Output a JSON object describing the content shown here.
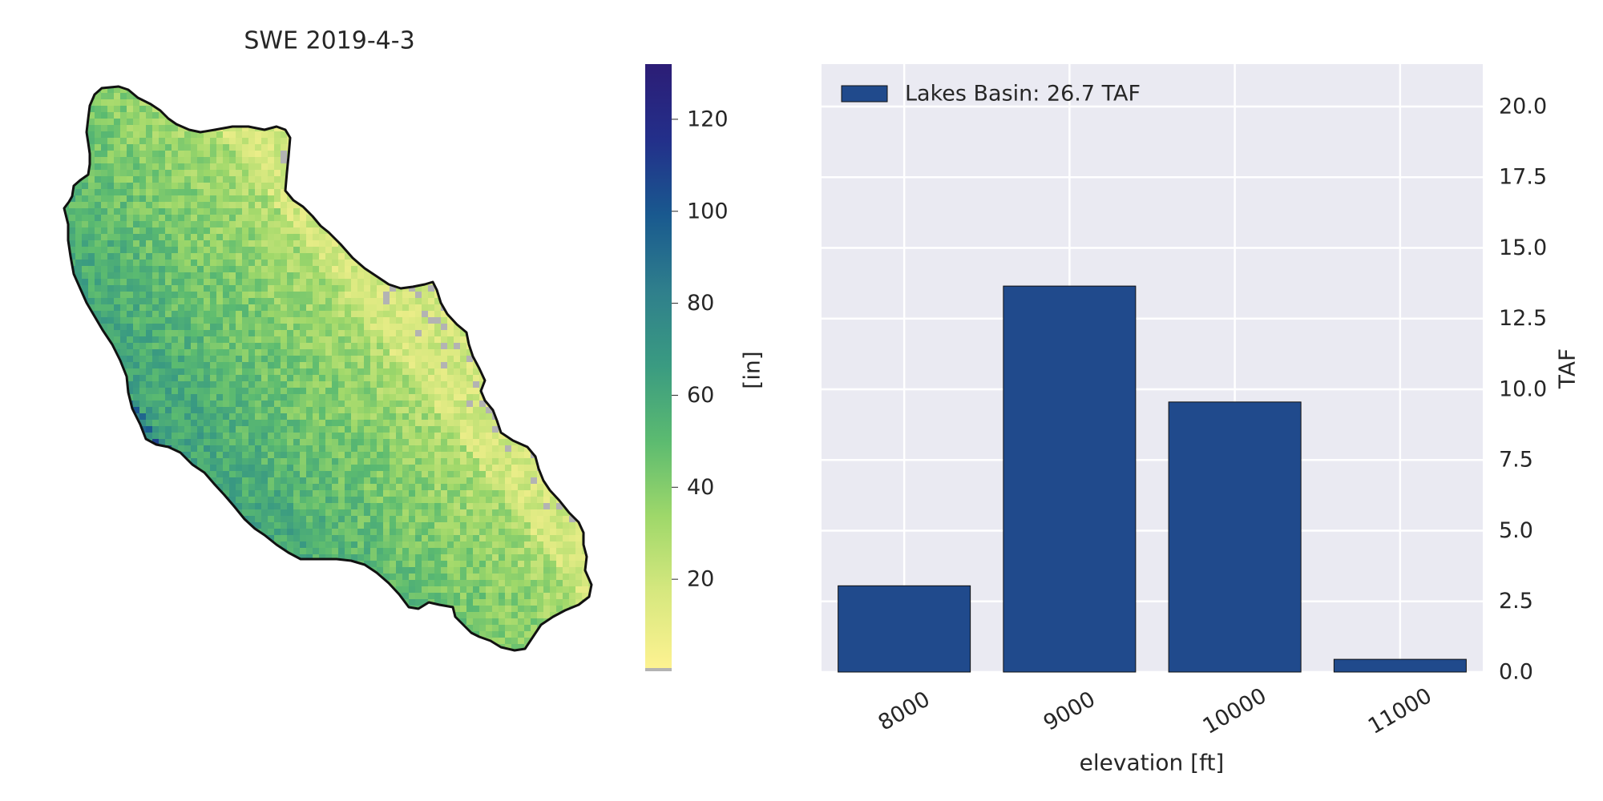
{
  "map_panel": {
    "title": "SWE 2019-4-3"
  },
  "colorbar": {
    "label": "[in]",
    "ticks": [
      20,
      40,
      60,
      80,
      100,
      120
    ],
    "min": 0,
    "max": 132,
    "colors": [
      "#fdf291",
      "#d7e87f",
      "#9fd86a",
      "#5cbb70",
      "#3a9b81",
      "#2f7f8c",
      "#19598f",
      "#232f8a",
      "#2c1d76"
    ],
    "nodata_color": "#b3b3b3"
  },
  "chart_data": {
    "type": "bar",
    "categories": [
      "8000",
      "9000",
      "10000",
      "11000"
    ],
    "series": [
      {
        "name": "Lakes Basin: 26.7 TAF",
        "values": [
          3.05,
          13.65,
          9.55,
          0.45
        ]
      }
    ],
    "xlabel": "elevation [ft]",
    "ylabel": "TAF",
    "ylim": [
      0,
      21.5
    ],
    "yticks": [
      0.0,
      2.5,
      5.0,
      7.5,
      10.0,
      12.5,
      15.0,
      17.5,
      20.0
    ],
    "ytick_labels": [
      "0.0",
      "2.5",
      "5.0",
      "7.5",
      "10.0",
      "12.5",
      "15.0",
      "17.5",
      "20.0"
    ],
    "y_axis_side": "right",
    "grid": true,
    "legend_position": "top-left",
    "bar_color": "#204a8c",
    "background": "#eaeaf2"
  }
}
